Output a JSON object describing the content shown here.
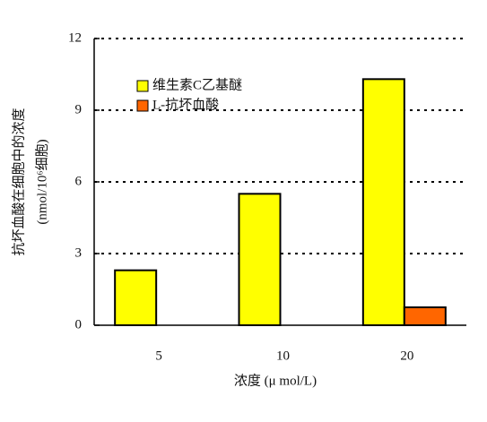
{
  "chart_data": {
    "type": "bar",
    "ylabel": [
      "抗坏血酸在细胞中的浓度",
      "(nmol/10⁶细胞)"
    ],
    "xlabel": "浓度 (μ mol/L)",
    "categories": [
      "5",
      "10",
      "20"
    ],
    "series": [
      {
        "name": "维生素C乙基醚",
        "color": "#ffff00",
        "values": [
          2.3,
          5.5,
          10.3
        ]
      },
      {
        "name": "L-抗坏血酸",
        "color": "#ff6600",
        "values": [
          null,
          null,
          0.75
        ]
      }
    ],
    "ylim": [
      0,
      12
    ],
    "yticks": [
      0,
      3,
      6,
      9,
      12
    ],
    "grid": true,
    "legend": "upper left"
  }
}
